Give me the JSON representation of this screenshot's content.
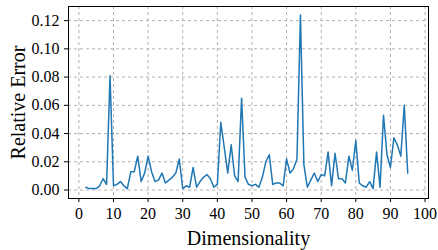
{
  "chart_data": {
    "type": "line",
    "x_label": "Dimensionality",
    "y_label": "Relative Error",
    "x": [
      2,
      3,
      4,
      5,
      6,
      7,
      8,
      9,
      10,
      11,
      12,
      13,
      14,
      15,
      16,
      17,
      18,
      19,
      20,
      21,
      22,
      23,
      24,
      25,
      26,
      27,
      28,
      29,
      30,
      31,
      32,
      33,
      34,
      35,
      36,
      37,
      38,
      39,
      40,
      41,
      42,
      43,
      44,
      45,
      46,
      47,
      48,
      49,
      50,
      51,
      52,
      53,
      54,
      55,
      56,
      57,
      58,
      59,
      60,
      61,
      62,
      63,
      64,
      65,
      66,
      67,
      68,
      69,
      70,
      71,
      72,
      73,
      74,
      75,
      76,
      77,
      78,
      79,
      80,
      81,
      82,
      83,
      84,
      85,
      86,
      87,
      88,
      89,
      90,
      91,
      92,
      93,
      94,
      95
    ],
    "values": [
      0.002,
      0.001,
      0.001,
      0.001,
      0.003,
      0.008,
      0.004,
      0.081,
      0.003,
      0.004,
      0.006,
      0.003,
      0.001,
      0.013,
      0.013,
      0.024,
      0.006,
      0.012,
      0.024,
      0.013,
      0.006,
      0.007,
      0.012,
      0.005,
      0.007,
      0.009,
      0.012,
      0.022,
      0.001,
      0.003,
      0.002,
      0.016,
      0.002,
      0.006,
      0.009,
      0.011,
      0.008,
      0.002,
      0.004,
      0.048,
      0.03,
      0.012,
      0.032,
      0.01,
      0.006,
      0.065,
      0.009,
      0.004,
      0.003,
      0.004,
      0.002,
      0.009,
      0.02,
      0.025,
      0.004,
      0.005,
      0.005,
      0.003,
      0.022,
      0.012,
      0.015,
      0.022,
      0.124,
      0.018,
      0.002,
      0.007,
      0.012,
      0.006,
      0.011,
      0.01,
      0.027,
      0.003,
      0.026,
      0.008,
      0.008,
      0.005,
      0.024,
      0.014,
      0.035,
      0.005,
      0.003,
      0.002,
      0.006,
      0.001,
      0.027,
      0.002,
      0.053,
      0.025,
      0.016,
      0.037,
      0.032,
      0.024,
      0.06,
      0.012
    ],
    "color": "#1f77b4",
    "xlim": [
      -3,
      101
    ],
    "xticks": [
      0,
      10,
      20,
      30,
      40,
      50,
      60,
      70,
      80,
      90,
      100
    ],
    "ylim": [
      -0.006,
      0.13
    ],
    "yticks": [
      0,
      0.02,
      0.04,
      0.06,
      0.08,
      0.1,
      0.12
    ],
    "grid": true
  }
}
